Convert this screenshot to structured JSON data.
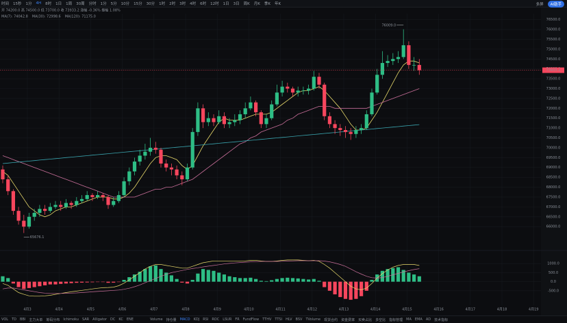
{
  "toolbar": {
    "items": [
      "时间",
      "15秒",
      "1分",
      "4H",
      "8时",
      "1日",
      "1周",
      "30周",
      "分时",
      "1分",
      "5分",
      "10分",
      "15分",
      "30分",
      "1时",
      "2时",
      "3时",
      "4时",
      "6时",
      "12时",
      "1日",
      "3日",
      "周K",
      "月K",
      "季K",
      "年K"
    ],
    "active": 3,
    "right": [
      "多屏",
      "AI助手"
    ]
  },
  "chart_data": {
    "type": "candlestick",
    "legend_ohlc": "开 74200.0  高 74500.0  低 73700.0  收 73933.2  涨幅 -0.36%  振幅 1.08%",
    "up_color": "#2ebd85",
    "down_color": "#f6465d",
    "x_labels": [
      "4月3",
      "4月4",
      "4月5",
      "4月6",
      "4月7",
      "4月8",
      "4月9",
      "4月10",
      "4月11",
      "4月12",
      "4月13",
      "4月14",
      "4月15",
      "4月16",
      "4月17",
      "4月18",
      "4月19"
    ],
    "ylim": [
      65000,
      76800
    ],
    "yticks": [
      {
        "value": 66000,
        "label": "66000.0"
      },
      {
        "value": 66500,
        "label": "66500.0"
      },
      {
        "value": 67000,
        "label": "67000.0"
      },
      {
        "value": 67500,
        "label": "67500.0"
      },
      {
        "value": 68000,
        "label": "68000.0"
      },
      {
        "value": 68500,
        "label": "68500.0"
      },
      {
        "value": 69000,
        "label": "69000.0"
      },
      {
        "value": 69500,
        "label": "69500.0"
      },
      {
        "value": 70000,
        "label": "70000.0"
      },
      {
        "value": 70500,
        "label": "70500.0"
      },
      {
        "value": 71000,
        "label": "71000.0"
      },
      {
        "value": 71500,
        "label": "71500.0"
      },
      {
        "value": 72000,
        "label": "72000.0"
      },
      {
        "value": 72500,
        "label": "72500.0"
      },
      {
        "value": 73000,
        "label": "73000.0"
      },
      {
        "value": 73500,
        "label": "73500.0"
      },
      {
        "value": 74000,
        "label": "74000.0"
      },
      {
        "value": 74500,
        "label": "74500.0"
      },
      {
        "value": 75000,
        "label": "75000.0"
      },
      {
        "value": 75500,
        "label": "75500.0"
      },
      {
        "value": 76000,
        "label": "76000.0"
      },
      {
        "value": 76500,
        "label": "76500.0"
      }
    ],
    "grid": true,
    "high_label": "76009.0",
    "low_label": "65676.1",
    "last_label": "73933.2",
    "candles": [
      [
        68900,
        69100,
        68200,
        68400
      ],
      [
        68400,
        68600,
        67600,
        67800
      ],
      [
        67800,
        67900,
        66600,
        66800
      ],
      [
        66800,
        67000,
        66100,
        66300
      ],
      [
        66300,
        66600,
        65676.1,
        66000
      ],
      [
        66000,
        66700,
        65900,
        66500
      ],
      [
        66500,
        66900,
        66300,
        66700
      ],
      [
        66700,
        67100,
        66500,
        66900
      ],
      [
        66900,
        67100,
        66600,
        66800
      ],
      [
        66800,
        67200,
        66700,
        67000
      ],
      [
        67000,
        67300,
        66900,
        67100
      ],
      [
        67100,
        67300,
        66800,
        67000
      ],
      [
        67000,
        67400,
        66900,
        67200
      ],
      [
        67200,
        67300,
        66900,
        67100
      ],
      [
        67100,
        67500,
        67000,
        67300
      ],
      [
        67300,
        67600,
        67200,
        67400
      ],
      [
        67400,
        67800,
        67300,
        67600
      ],
      [
        67600,
        67700,
        67300,
        67500
      ],
      [
        67500,
        67800,
        67400,
        67600
      ],
      [
        67600,
        67700,
        67300,
        67500
      ],
      [
        67500,
        67600,
        66900,
        67100
      ],
      [
        67100,
        67500,
        67000,
        67300
      ],
      [
        67300,
        67800,
        67200,
        67600
      ],
      [
        67600,
        68500,
        67500,
        68300
      ],
      [
        68300,
        69000,
        68100,
        68800
      ],
      [
        68800,
        69500,
        68600,
        69300
      ],
      [
        69300,
        69900,
        69100,
        69600
      ],
      [
        69600,
        70200,
        69400,
        69800
      ],
      [
        69800,
        70500,
        69600,
        70000
      ],
      [
        70000,
        70300,
        69700,
        69900
      ],
      [
        69900,
        70000,
        69000,
        69200
      ],
      [
        69200,
        69400,
        68800,
        69000
      ],
      [
        69000,
        69200,
        68600,
        68900
      ],
      [
        68900,
        69100,
        68400,
        68600
      ],
      [
        68600,
        68800,
        68100,
        68400
      ],
      [
        68400,
        69200,
        68300,
        69000
      ],
      [
        69000,
        71000,
        68900,
        70800
      ],
      [
        70800,
        72300,
        70600,
        72000
      ],
      [
        72000,
        72200,
        71000,
        71300
      ],
      [
        71300,
        71800,
        71100,
        71500
      ],
      [
        71500,
        71700,
        71100,
        71300
      ],
      [
        71300,
        71900,
        71200,
        71600
      ],
      [
        71600,
        71800,
        71000,
        71200
      ],
      [
        71200,
        71500,
        71000,
        71300
      ],
      [
        71300,
        71700,
        71100,
        71400
      ],
      [
        71400,
        71900,
        71200,
        71700
      ],
      [
        71700,
        72300,
        71500,
        72000
      ],
      [
        72000,
        72600,
        71900,
        72300
      ],
      [
        72300,
        72400,
        71600,
        71800
      ],
      [
        71800,
        71900,
        71000,
        71200
      ],
      [
        71200,
        71700,
        71000,
        71500
      ],
      [
        71500,
        72400,
        71400,
        72200
      ],
      [
        72200,
        73200,
        72100,
        72800
      ],
      [
        72800,
        73400,
        72600,
        73100
      ],
      [
        73100,
        73300,
        72800,
        73000
      ],
      [
        73000,
        73100,
        72600,
        72800
      ],
      [
        72800,
        73100,
        72600,
        72900
      ],
      [
        72900,
        73100,
        72700,
        72900
      ],
      [
        72900,
        73200,
        72700,
        73000
      ],
      [
        73000,
        73900,
        72900,
        73600
      ],
      [
        73600,
        73800,
        73000,
        73200
      ],
      [
        73200,
        73300,
        71400,
        71600
      ],
      [
        71600,
        71800,
        71000,
        71200
      ],
      [
        71200,
        71400,
        70700,
        71000
      ],
      [
        71000,
        71200,
        70600,
        70900
      ],
      [
        70900,
        71100,
        70500,
        70800
      ],
      [
        70800,
        71000,
        70400,
        70700
      ],
      [
        70700,
        71100,
        70500,
        70900
      ],
      [
        70900,
        71200,
        70700,
        71000
      ],
      [
        71000,
        71900,
        70900,
        71700
      ],
      [
        71700,
        73000,
        71600,
        72800
      ],
      [
        72800,
        74000,
        72700,
        73700
      ],
      [
        73700,
        74900,
        73500,
        74300
      ],
      [
        74300,
        74700,
        74100,
        74400
      ],
      [
        74400,
        74800,
        74200,
        74500
      ],
      [
        74500,
        74900,
        74300,
        74600
      ],
      [
        74600,
        76009,
        74500,
        75200
      ],
      [
        75200,
        75400,
        74000,
        74200
      ],
      [
        74200,
        74600,
        73900,
        74200
      ],
      [
        74200,
        74500,
        73700,
        73933.2
      ]
    ],
    "series": [
      {
        "name": "MA(7): 74042.8",
        "color": "#e8d96b",
        "values": [
          68800,
          68600,
          68200,
          67800,
          67400,
          67000,
          66800,
          66600,
          66500,
          66600,
          66800,
          66900,
          67000,
          67000,
          67100,
          67200,
          67300,
          67400,
          67500,
          67500,
          67500,
          67400,
          67400,
          67500,
          67700,
          68000,
          68400,
          68800,
          69200,
          69500,
          69600,
          69600,
          69500,
          69400,
          69100,
          68900,
          69100,
          69600,
          70100,
          70500,
          70900,
          71300,
          71500,
          71400,
          71400,
          71400,
          71500,
          71600,
          71700,
          71700,
          71700,
          71800,
          72000,
          72200,
          72400,
          72600,
          72800,
          72900,
          72900,
          73000,
          73100,
          72900,
          72600,
          72300,
          72000,
          71600,
          71200,
          70900,
          70900,
          71000,
          71400,
          71800,
          72300,
          72800,
          73300,
          73800,
          74200,
          74400,
          74400,
          74300
        ]
      },
      {
        "name": "MA(30): 72998.6",
        "color": "#c96f9a",
        "values": [
          69600,
          69500,
          69400,
          69300,
          69200,
          69100,
          69000,
          68900,
          68800,
          68700,
          68600,
          68500,
          68400,
          68300,
          68200,
          68100,
          68000,
          67900,
          67800,
          67700,
          67600,
          67500,
          67500,
          67500,
          67500,
          67500,
          67600,
          67700,
          67800,
          67900,
          67900,
          68000,
          68000,
          68100,
          68200,
          68300,
          68400,
          68600,
          68800,
          69000,
          69200,
          69400,
          69600,
          69800,
          70000,
          70200,
          70300,
          70500,
          70600,
          70800,
          70900,
          71000,
          71100,
          71200,
          71400,
          71500,
          71700,
          71800,
          71900,
          72000,
          72100,
          72100,
          72100,
          72000,
          72000,
          72000,
          72000,
          72000,
          72000,
          72000,
          72100,
          72200,
          72300,
          72400,
          72500,
          72600,
          72700,
          72800,
          72900,
          73000
        ]
      },
      {
        "name": "MA(120): 71175.0",
        "color": "#3aa6b0",
        "values": [
          69200,
          69225,
          69250,
          69275,
          69300,
          69325,
          69350,
          69375,
          69400,
          69425,
          69450,
          69475,
          69500,
          69525,
          69550,
          69575,
          69600,
          69625,
          69650,
          69675,
          69700,
          69725,
          69750,
          69775,
          69800,
          69825,
          69850,
          69875,
          69900,
          69925,
          69950,
          69975,
          70000,
          70025,
          70050,
          70075,
          70100,
          70125,
          70150,
          70175,
          70200,
          70225,
          70250,
          70275,
          70300,
          70325,
          70350,
          70375,
          70400,
          70425,
          70450,
          70475,
          70500,
          70525,
          70550,
          70575,
          70600,
          70625,
          70650,
          70675,
          70700,
          70725,
          70750,
          70775,
          70800,
          70825,
          70850,
          70875,
          70900,
          70925,
          70950,
          70975,
          71000,
          71025,
          71050,
          71075,
          71100,
          71125,
          71150,
          71175
        ]
      }
    ]
  },
  "macd": {
    "ylim": [
      -1300,
      1500
    ],
    "yticks": [
      {
        "value": 1000,
        "label": "1000.0"
      },
      {
        "value": 500,
        "label": "500.0"
      },
      {
        "value": 0,
        "label": "0.0"
      },
      {
        "value": -500,
        "label": "-500.0"
      }
    ],
    "hist": [
      300,
      200,
      -100,
      -300,
      -400,
      -350,
      -300,
      -250,
      -200,
      -150,
      -150,
      -120,
      -100,
      -80,
      -60,
      -50,
      -40,
      -30,
      -20,
      -20,
      -60,
      -50,
      -20,
      100,
      250,
      400,
      550,
      700,
      850,
      900,
      700,
      500,
      350,
      150,
      -50,
      -100,
      100,
      450,
      700,
      650,
      600,
      500,
      400,
      300,
      250,
      200,
      200,
      220,
      150,
      50,
      30,
      80,
      150,
      200,
      220,
      200,
      180,
      150,
      120,
      150,
      50,
      -300,
      -500,
      -700,
      -850,
      -950,
      -1000,
      -950,
      -800,
      -500,
      100,
      400,
      600,
      700,
      750,
      800,
      650,
      500,
      400,
      300
    ],
    "series": [
      {
        "name": "DIF",
        "color": "#e8d96b",
        "values": [
          -100,
          -200,
          -400,
          -600,
          -700,
          -780,
          -800,
          -800,
          -780,
          -750,
          -700,
          -650,
          -600,
          -560,
          -520,
          -480,
          -440,
          -400,
          -360,
          -330,
          -320,
          -300,
          -220,
          -80,
          100,
          300,
          500,
          700,
          850,
          950,
          950,
          900,
          850,
          800,
          750,
          750,
          850,
          950,
          1050,
          1100,
          1150,
          1150,
          1150,
          1150,
          1150,
          1150,
          1150,
          1180,
          1180,
          1150,
          1120,
          1120,
          1150,
          1180,
          1200,
          1200,
          1200,
          1180,
          1160,
          1180,
          1130,
          950,
          750,
          500,
          250,
          0,
          -250,
          -400,
          -450,
          -350,
          -100,
          200,
          450,
          650,
          800,
          900,
          950,
          950,
          950,
          900
        ]
      },
      {
        "name": "DEA",
        "color": "#c96f9a",
        "values": [
          -400,
          -350,
          -350,
          -400,
          -450,
          -500,
          -550,
          -600,
          -630,
          -650,
          -650,
          -650,
          -640,
          -630,
          -620,
          -600,
          -580,
          -560,
          -540,
          -520,
          -500,
          -480,
          -460,
          -420,
          -360,
          -280,
          -180,
          -60,
          60,
          180,
          300,
          400,
          500,
          560,
          620,
          680,
          730,
          770,
          820,
          860,
          900,
          940,
          980,
          1010,
          1040,
          1060,
          1080,
          1100,
          1110,
          1120,
          1120,
          1120,
          1120,
          1130,
          1140,
          1150,
          1160,
          1160,
          1160,
          1160,
          1160,
          1140,
          1100,
          1030,
          950,
          850,
          700,
          550,
          420,
          300,
          220,
          200,
          230,
          300,
          380,
          460,
          540,
          610,
          670,
          720
        ]
      }
    ]
  },
  "indicators": {
    "main": [
      "VOL",
      "TD",
      "BBI",
      "主力大单",
      "筹码分布",
      "Ichimoku",
      "SAR",
      "Alligator",
      "DC",
      "KC",
      "ENE"
    ],
    "sub": [
      "Volume",
      "持仓量",
      "MACD",
      "KDJ",
      "RSI",
      "ROC",
      "LSUR",
      "FR",
      "FundFlow",
      "TTHV",
      "TTSI",
      "HLV",
      "BSV",
      "TVolume",
      "现货合约",
      "资金费率",
      "买卖占比",
      "多空比",
      "指标管理",
      "MA",
      "EMA",
      "AD",
      "技术指标"
    ]
  }
}
